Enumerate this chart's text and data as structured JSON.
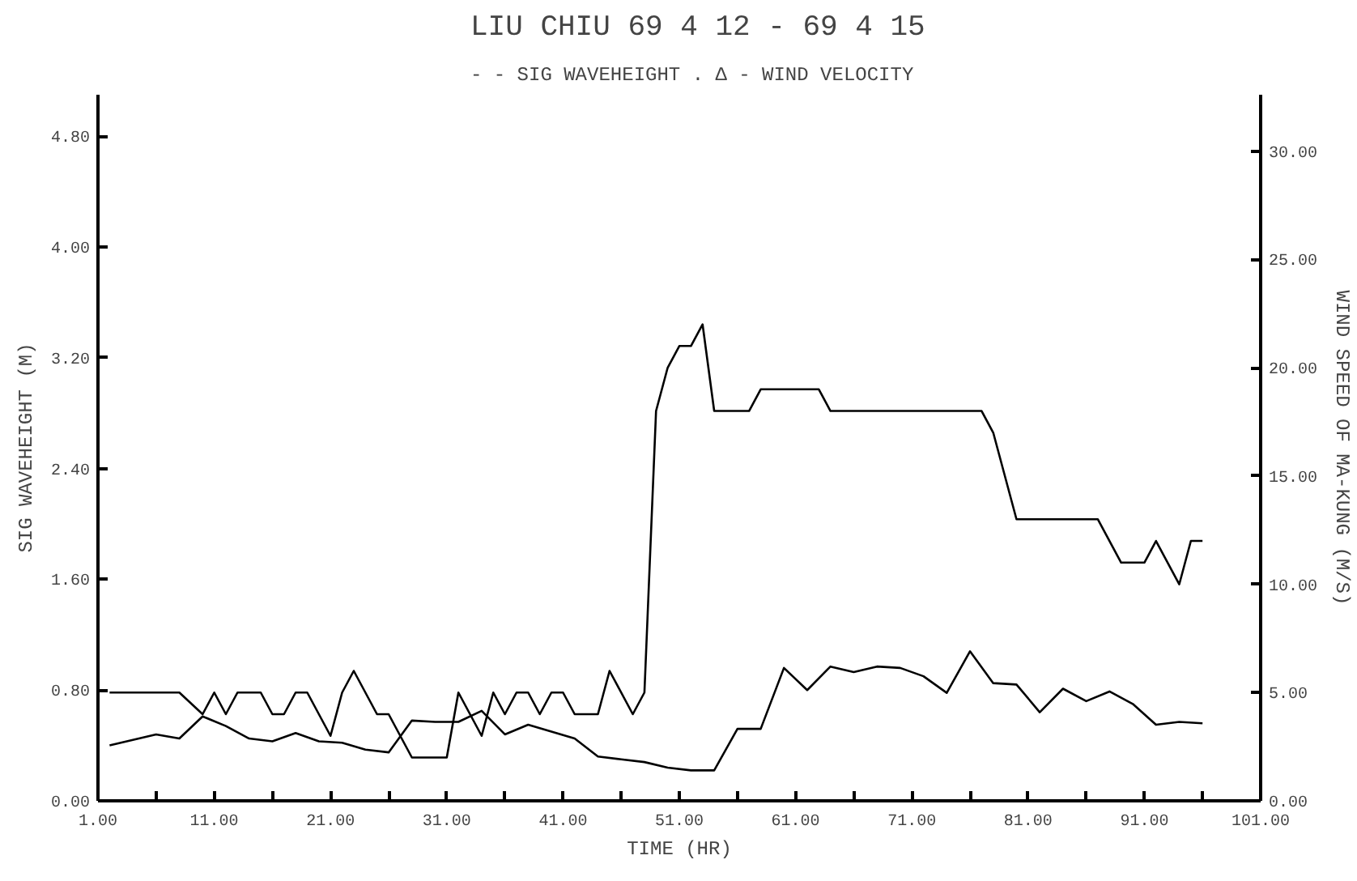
{
  "chart_data": {
    "type": "line",
    "title": "LIU CHIU      69  4 12 - 69  4 15",
    "subtitle": "- - SIG WAVEHEIGHT . Δ - WIND VELOCITY",
    "xlabel": "TIME (HR)",
    "ylabel": "SIG WAVEHEIGHT (M)",
    "y2label": "WIND SPEED OF MA-KUNG (M/S)",
    "xlim": [
      1,
      101
    ],
    "xticks": [
      {
        "value": 1,
        "label": "1.00"
      },
      {
        "value": 6,
        "label": null
      },
      {
        "value": 11,
        "label": "11.00"
      },
      {
        "value": 16,
        "label": null
      },
      {
        "value": 21,
        "label": "21.00"
      },
      {
        "value": 26,
        "label": null
      },
      {
        "value": 31,
        "label": "31.00"
      },
      {
        "value": 36,
        "label": null
      },
      {
        "value": 41,
        "label": "41.00"
      },
      {
        "value": 46,
        "label": null
      },
      {
        "value": 51,
        "label": "51.00"
      },
      {
        "value": 56,
        "label": null
      },
      {
        "value": 61,
        "label": "61.00"
      },
      {
        "value": 66,
        "label": null
      },
      {
        "value": 71,
        "label": "71.00"
      },
      {
        "value": 76,
        "label": null
      },
      {
        "value": 81,
        "label": "81.00"
      },
      {
        "value": 86,
        "label": null
      },
      {
        "value": 91,
        "label": "91.00"
      },
      {
        "value": 96,
        "label": null
      },
      {
        "value": 101,
        "label": "101.00"
      }
    ],
    "ylim": [
      0,
      5.1
    ],
    "yticks": [
      {
        "value": 0,
        "label": "0.00"
      },
      {
        "value": 0.8,
        "label": "0.80"
      },
      {
        "value": 1.6,
        "label": "1.60"
      },
      {
        "value": 2.4,
        "label": "2.40"
      },
      {
        "value": 3.2,
        "label": "3.20"
      },
      {
        "value": 4.0,
        "label": "4.00"
      },
      {
        "value": 4.8,
        "label": "4.80"
      }
    ],
    "y2lim": [
      0,
      32.6
    ],
    "y2ticks": [
      {
        "value": 0,
        "label": "0.00"
      },
      {
        "value": 5,
        "label": "5.00"
      },
      {
        "value": 10,
        "label": "10.00"
      },
      {
        "value": 15,
        "label": "15.00"
      },
      {
        "value": 20,
        "label": "20.00"
      },
      {
        "value": 25,
        "label": "25.00"
      },
      {
        "value": 30,
        "label": "30.00"
      }
    ],
    "grid": false,
    "series": [
      {
        "color": "#000000",
        "x": [
          2,
          6,
          8,
          10,
          12,
          14,
          16,
          18,
          20,
          22,
          24,
          26,
          28,
          30,
          32,
          34,
          36,
          38,
          40,
          42,
          44,
          46,
          48,
          50,
          52,
          54,
          56,
          58,
          60,
          62,
          64,
          66,
          68,
          70,
          72,
          74,
          76,
          78,
          80,
          82,
          84,
          86,
          88,
          90,
          92,
          94,
          96
        ],
        "values": [
          0.4,
          0.48,
          0.45,
          0.61,
          0.54,
          0.45,
          0.43,
          0.49,
          0.43,
          0.42,
          0.37,
          0.35,
          0.58,
          0.57,
          0.57,
          0.65,
          0.48,
          0.55,
          0.5,
          0.45,
          0.32,
          0.3,
          0.28,
          0.24,
          0.22,
          0.22,
          0.52,
          0.52,
          0.96,
          0.8,
          0.97,
          0.93,
          0.97,
          0.96,
          0.9,
          0.78,
          1.08,
          0.85,
          0.84,
          0.64,
          0.81,
          0.72,
          0.79,
          0.7,
          0.55,
          0.57,
          0.56
        ]
      },
      {
        "color": "#000000",
        "axis": "y2",
        "x": [
          2,
          8,
          10,
          11,
          12,
          13,
          15,
          16,
          17,
          18,
          19,
          21,
          22,
          23,
          25,
          26,
          28,
          31,
          32,
          34,
          35,
          36,
          37,
          38,
          39,
          40,
          41,
          42,
          44,
          45,
          47,
          48,
          49,
          50,
          51,
          52,
          53,
          54,
          57,
          58,
          63,
          64,
          77,
          78,
          80,
          87,
          89,
          91,
          92,
          94,
          95,
          96
        ],
        "values": [
          5,
          5,
          4,
          5,
          4,
          5,
          5,
          4,
          4,
          5,
          5,
          3,
          5,
          6,
          4,
          4,
          2,
          2,
          5,
          3,
          5,
          4,
          5,
          5,
          4,
          5,
          5,
          4,
          4,
          6,
          4,
          5,
          18,
          20,
          21,
          21,
          22,
          18,
          18,
          19,
          19,
          18,
          18,
          17,
          13,
          13,
          11,
          11,
          12,
          10,
          12,
          12
        ]
      }
    ]
  }
}
